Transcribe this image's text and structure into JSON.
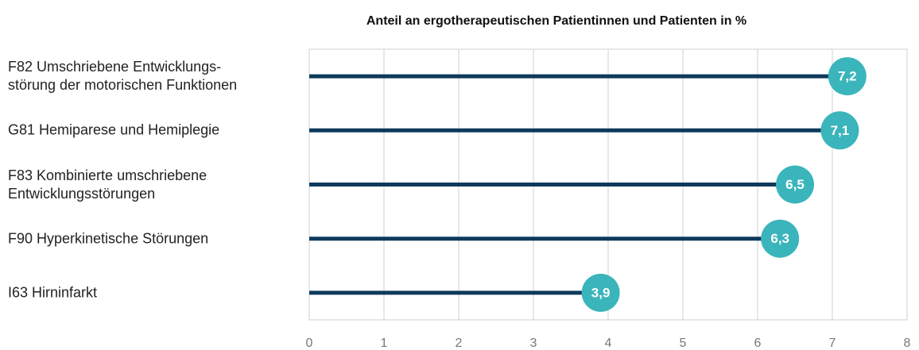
{
  "chart_data": {
    "type": "lollipop",
    "title": "Anteil an ergotherapeutischen Patientinnen und Patienten in %",
    "categories": [
      "F82 Umschriebene Entwicklungs-\nstörung der motorischen Funktionen",
      "G81 Hemiparese und Hemiplegie",
      "F83 Kombinierte umschriebene\nEntwicklungsstörungen",
      "F90 Hyperkinetische Störungen",
      "I63 Hirninfarkt"
    ],
    "values": [
      7.2,
      7.1,
      6.5,
      6.3,
      3.9
    ],
    "value_labels": [
      "7,2",
      "7,1",
      "6,5",
      "6,3",
      "3,9"
    ],
    "color": "#0d3a5c",
    "marker_color": "#3ab5bb",
    "xlim": [
      0,
      8
    ],
    "xticks": [
      0,
      1,
      2,
      3,
      4,
      5,
      6,
      7,
      8
    ],
    "grid": true
  }
}
